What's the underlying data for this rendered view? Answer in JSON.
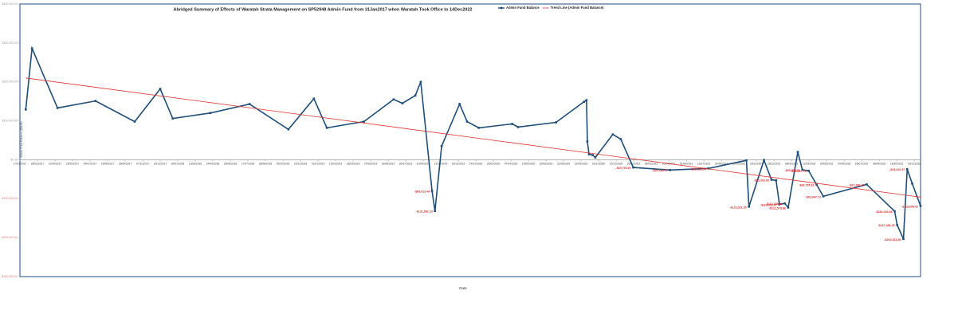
{
  "chart_data": {
    "type": "line",
    "title": "Abridged Summary of Effects of Waratah Strata Management on SP52948 Admin Fund from 31Jan2017 when Waratah Took Office to 14Dec2022",
    "x_label": "Date",
    "y_label": "Admin Fund Balance ($AUD)",
    "xlim": [
      "17/01/2017",
      "14/12/2022"
    ],
    "xticks": [
      "17/01/2017",
      "28/02/2017",
      "11/04/2017",
      "23/05/2017",
      "04/07/2017",
      "15/08/2017",
      "26/09/2017",
      "07/11/2017",
      "19/12/2017",
      "30/01/2018",
      "13/03/2018",
      "24/04/2018",
      "05/06/2018",
      "17/07/2018",
      "28/08/2018",
      "09/10/2018",
      "20/11/2018",
      "01/01/2019",
      "12/02/2019",
      "26/03/2019",
      "07/05/2019",
      "18/06/2019",
      "30/07/2019",
      "10/09/2019",
      "22/10/2019",
      "03/12/2019",
      "14/01/2020",
      "25/02/2020",
      "07/04/2020",
      "19/05/2020",
      "30/06/2020",
      "11/08/2020",
      "22/09/2020",
      "03/11/2020",
      "15/12/2020",
      "26/01/2021",
      "09/03/2021",
      "20/04/2021",
      "01/06/2021",
      "13/07/2021",
      "24/08/2021",
      "05/10/2021",
      "16/11/2021",
      "28/12/2021",
      "08/02/2022",
      "22/03/2022",
      "03/05/2022",
      "14/06/2022",
      "26/07/2022",
      "06/09/2022",
      "18/10/2022",
      "29/11/2022"
    ],
    "ylim": [
      -300000,
      400000
    ],
    "yticks": [
      {
        "value": -300000,
        "label": "-$300,000.00"
      },
      {
        "value": -200000,
        "label": "-$200,000.00"
      },
      {
        "value": -100000,
        "label": "-$100,000.00"
      },
      {
        "value": 0,
        "label": "$0.00"
      },
      {
        "value": 100000,
        "label": "$100,000.00"
      },
      {
        "value": 200000,
        "label": "$200,000.00"
      },
      {
        "value": 300000,
        "label": "$300,000.00"
      },
      {
        "value": 400000,
        "label": "$400,000.00"
      }
    ],
    "legend": "top",
    "series": [
      {
        "name": "Admin Fund Balance",
        "color": "#1f4e79",
        "x": [
          "31/01/2017",
          "15/02/2017",
          "17/04/2017",
          "17/07/2017",
          "19/10/2017",
          "19/12/2017",
          "18/01/2018",
          "18/04/2018",
          "21/07/2018",
          "22/10/2018",
          "22/12/2018",
          "22/01/2019",
          "21/04/2019",
          "01/07/2019",
          "22/07/2019",
          "22/08/2019",
          "04/09/2019",
          "01/10/2019",
          "08/10/2019",
          "24/10/2019",
          "06/12/2019",
          "24/12/2019",
          "21/01/2020",
          "10/04/2020",
          "24/04/2020",
          "24/07/2020",
          "29/09/2020",
          "05/10/2020",
          "07/10/2020",
          "11/10/2020",
          "20/10/2020",
          "26/10/2020",
          "07/12/2020",
          "26/12/2020",
          "25/01/2021",
          "23/04/2021",
          "24/07/2021",
          "23/10/2021",
          "29/10/2021",
          "04/12/2021",
          "22/12/2021",
          "02/01/2022",
          "10/01/2022",
          "23/01/2022",
          "31/01/2022",
          "23/02/2022",
          "06/03/2022",
          "21/03/2022",
          "09/04/2022",
          "25/04/2022",
          "07/08/2022",
          "13/10/2022",
          "19/10/2022",
          "03/11/2022",
          "12/11/2022",
          "24/11/2022",
          "14/12/2022"
        ],
        "values": [
          129000,
          286000,
          133000,
          151000,
          98000,
          182000,
          106000,
          120000,
          143000,
          78000,
          157000,
          82000,
          98000,
          155000,
          145000,
          165000,
          200000,
          -80013.44,
          -131582.2,
          35000,
          143000,
          98000,
          82000,
          92000,
          84000,
          96000,
          149000,
          153000,
          47000,
          14000,
          12000,
          6000,
          65000,
          53000,
          -19794.69,
          -26284.77,
          -22322.54,
          -1500,
          -120521.55,
          -1000,
          -51302.6,
          -53000,
          -114353.87,
          -112088.12,
          -122578.86,
          20000,
          -25837.84,
          -28267.74,
          -63785.91,
          -93947.13,
          -63289.45,
          -132239.38,
          -167486.35,
          -203514.85,
          -24220.57,
          -61000,
          -118595.42
        ],
        "value_labels": [
          null,
          null,
          null,
          null,
          null,
          null,
          null,
          null,
          null,
          null,
          null,
          null,
          null,
          null,
          null,
          null,
          null,
          "-$80,013.44",
          "-$131,582.20",
          null,
          null,
          null,
          null,
          null,
          null,
          null,
          null,
          null,
          null,
          null,
          null,
          null,
          null,
          null,
          "-$19,794.69",
          "-$26,284.77",
          "-$22,322.54",
          null,
          "-$120,521.55",
          null,
          "-$51,302.60",
          null,
          "-$114,353.87",
          "-$112,088.12",
          "-$122,578.86",
          null,
          "-$25,837.84",
          "-$28,267.74",
          "-$63,785.91",
          "-$93,947.13",
          "-$63,289.45",
          "-$132,239.38",
          "-$167,486.35",
          "-$203,514.85",
          "-$24,220.57",
          null,
          "-$118,595.42"
        ]
      },
      {
        "name": "Trend Line (Admin Fund Balance)",
        "color": "#e03030",
        "x": [
          "31/01/2017",
          "14/12/2022"
        ],
        "values": [
          210000,
          -96000
        ]
      }
    ]
  }
}
